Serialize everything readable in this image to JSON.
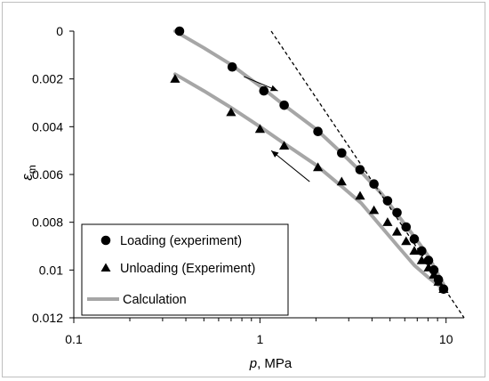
{
  "chart_data": {
    "type": "scatter",
    "title": "",
    "x_axis": {
      "label_italic": "p",
      "label_rest": ", MPa",
      "scale": "log",
      "range": [
        0.1,
        12.5
      ],
      "ticks": [
        0.1,
        1,
        10
      ],
      "tick_labels": [
        "0.1",
        "1",
        "10"
      ]
    },
    "y_axis": {
      "label": "ε",
      "label_subscript": "m",
      "range": [
        0,
        0.012
      ],
      "reversed": true,
      "ticks": [
        0,
        0.002,
        0.004,
        0.006,
        0.008,
        0.01,
        0.012
      ],
      "tick_labels": [
        "0",
        "0.002",
        "0.004",
        "0.006",
        "0.008",
        "0.01",
        "0.012"
      ]
    },
    "grid": false,
    "legend_position": "bottom-left",
    "series": [
      {
        "name": "Loading (experiment)",
        "marker": "circle",
        "color": "#000000",
        "points": [
          [
            0.37,
            0.0
          ],
          [
            0.71,
            0.0015
          ],
          [
            1.05,
            0.0025
          ],
          [
            1.35,
            0.0031
          ],
          [
            2.05,
            0.0042
          ],
          [
            2.75,
            0.0051
          ],
          [
            3.45,
            0.0058
          ],
          [
            4.1,
            0.0064
          ],
          [
            4.85,
            0.0071
          ],
          [
            5.45,
            0.0076
          ],
          [
            6.1,
            0.0082
          ],
          [
            6.75,
            0.0087
          ],
          [
            7.4,
            0.0092
          ],
          [
            8.05,
            0.0096
          ],
          [
            8.6,
            0.01
          ],
          [
            9.1,
            0.0104
          ],
          [
            9.7,
            0.0108
          ]
        ]
      },
      {
        "name": "Unloading (Experiment)",
        "marker": "triangle",
        "color": "#000000",
        "points": [
          [
            0.35,
            0.002
          ],
          [
            0.7,
            0.0034
          ],
          [
            1.0,
            0.0041
          ],
          [
            1.35,
            0.0048
          ],
          [
            2.05,
            0.0057
          ],
          [
            2.75,
            0.0063
          ],
          [
            3.45,
            0.0069
          ],
          [
            4.1,
            0.0075
          ],
          [
            4.85,
            0.008
          ],
          [
            5.45,
            0.0084
          ],
          [
            6.1,
            0.0088
          ],
          [
            6.75,
            0.0092
          ],
          [
            7.4,
            0.0096
          ],
          [
            8.05,
            0.0099
          ],
          [
            8.6,
            0.0102
          ],
          [
            9.1,
            0.0105
          ],
          [
            9.7,
            0.0108
          ]
        ]
      },
      {
        "name": "Calculation",
        "marker": "line",
        "color": "#a6a6a6",
        "curves": [
          [
            [
              0.35,
              0.0
            ],
            [
              0.5,
              0.0007
            ],
            [
              0.7,
              0.0014
            ],
            [
              1.0,
              0.0023
            ],
            [
              1.35,
              0.0031
            ],
            [
              2.0,
              0.0041
            ],
            [
              2.75,
              0.0051
            ],
            [
              3.5,
              0.0059
            ],
            [
              4.5,
              0.0068
            ],
            [
              5.5,
              0.0077
            ],
            [
              6.75,
              0.0086
            ],
            [
              8.0,
              0.0094
            ],
            [
              9.7,
              0.0106
            ]
          ],
          [
            [
              0.35,
              0.0018
            ],
            [
              0.5,
              0.0025
            ],
            [
              0.7,
              0.0032
            ],
            [
              1.0,
              0.004
            ],
            [
              1.35,
              0.0047
            ],
            [
              2.0,
              0.0056
            ],
            [
              2.75,
              0.0065
            ],
            [
              3.5,
              0.0072
            ],
            [
              4.5,
              0.0082
            ],
            [
              5.5,
              0.009
            ],
            [
              6.75,
              0.0098
            ],
            [
              8.0,
              0.0103
            ],
            [
              9.7,
              0.0108
            ]
          ]
        ]
      },
      {
        "name": "",
        "marker": "dashed",
        "color": "#000000",
        "points": [
          [
            1.15,
            0.0
          ],
          [
            12.5,
            0.012
          ]
        ]
      }
    ],
    "annotations": [
      {
        "type": "arrow",
        "from": [
          0.82,
          0.0019
        ],
        "to": [
          1.25,
          0.0025
        ]
      },
      {
        "type": "arrow",
        "from": [
          1.85,
          0.0063
        ],
        "to": [
          1.15,
          0.005
        ]
      }
    ]
  }
}
